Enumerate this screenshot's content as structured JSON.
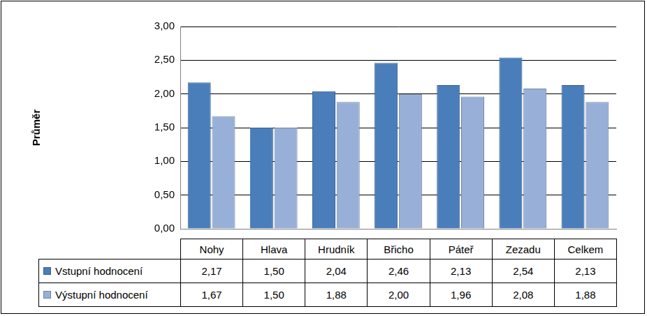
{
  "chart_data": {
    "type": "bar",
    "y_label": "Průměr",
    "categories": [
      "Nohy",
      "Hlava",
      "Hrudník",
      "Břicho",
      "Páteř",
      "Zezadu",
      "Celkem"
    ],
    "series": [
      {
        "name": "Vstupní hodnocení",
        "color": "#4a7ebb",
        "values": [
          2.17,
          1.5,
          2.04,
          2.46,
          2.13,
          2.54,
          2.13
        ],
        "value_labels": [
          "2,17",
          "1,50",
          "2,04",
          "2,46",
          "2,13",
          "2,54",
          "2,13"
        ]
      },
      {
        "name": "Výstupní hodnocení",
        "color": "#98b0d8",
        "values": [
          1.67,
          1.5,
          1.88,
          2.0,
          1.96,
          2.08,
          1.88
        ],
        "value_labels": [
          "1,67",
          "1,50",
          "1,88",
          "2,00",
          "1,96",
          "2,08",
          "1,88"
        ]
      }
    ],
    "ylim": [
      0,
      3
    ],
    "yticks": [
      {
        "value": 0,
        "label": "0,00"
      },
      {
        "value": 0.5,
        "label": "0,50"
      },
      {
        "value": 1,
        "label": "1,00"
      },
      {
        "value": 1.5,
        "label": "1,50"
      },
      {
        "value": 2,
        "label": "2,00"
      },
      {
        "value": 2.5,
        "label": "2,50"
      },
      {
        "value": 3,
        "label": "3,00"
      }
    ],
    "grid": true
  }
}
